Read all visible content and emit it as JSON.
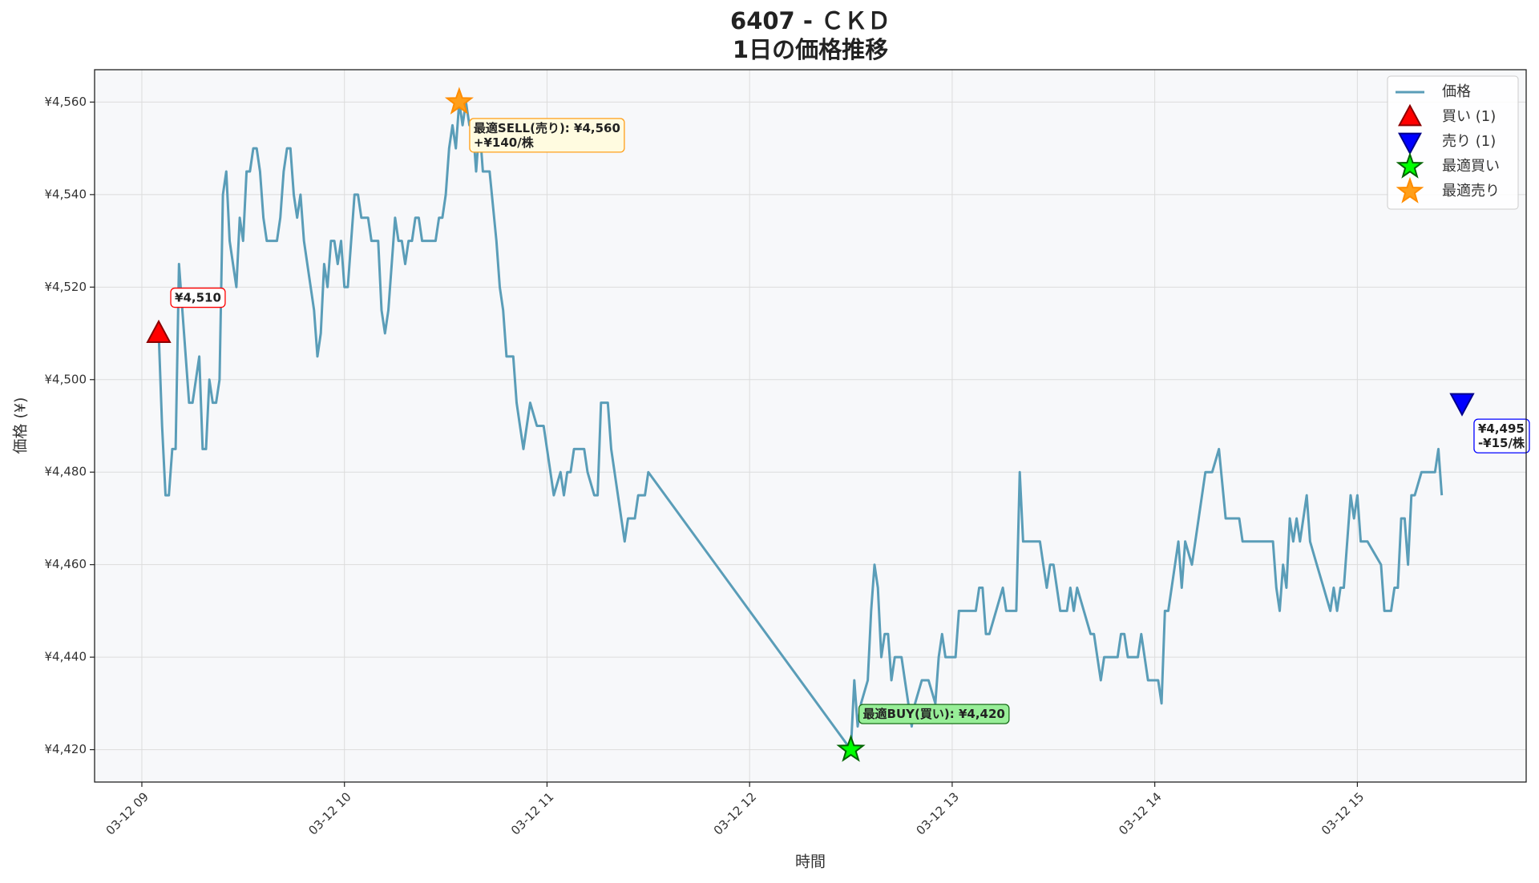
{
  "chart_data": {
    "type": "line",
    "title": "6407 - ＣＫＤ",
    "subtitle": "1日の価格推移",
    "x_label": "時間",
    "y_label": "価格 (¥)",
    "xlim": [
      "08:46",
      "15:50"
    ],
    "xticks": [
      {
        "value": "09:00",
        "label": "03-12 09"
      },
      {
        "value": "10:00",
        "label": "03-12 10"
      },
      {
        "value": "11:00",
        "label": "03-12 11"
      },
      {
        "value": "12:00",
        "label": "03-12 12"
      },
      {
        "value": "13:00",
        "label": "03-12 13"
      },
      {
        "value": "14:00",
        "label": "03-12 14"
      },
      {
        "value": "15:00",
        "label": "03-12 15"
      }
    ],
    "ylim": [
      4413,
      4567
    ],
    "yticks": [
      {
        "value": 4420,
        "label": "¥4,420"
      },
      {
        "value": 4440,
        "label": "¥4,440"
      },
      {
        "value": 4460,
        "label": "¥4,460"
      },
      {
        "value": 4480,
        "label": "¥4,480"
      },
      {
        "value": 4500,
        "label": "¥4,500"
      },
      {
        "value": 4520,
        "label": "¥4,520"
      },
      {
        "value": 4540,
        "label": "¥4,540"
      },
      {
        "value": 4560,
        "label": "¥4,560"
      }
    ],
    "grid": true,
    "legend": "upper right",
    "x": [
      "09:05",
      "09:06",
      "09:07",
      "09:08",
      "09:09",
      "09:10",
      "09:11",
      "09:12",
      "09:13",
      "09:14",
      "09:15",
      "09:16",
      "09:17",
      "09:18",
      "09:19",
      "09:20",
      "09:21",
      "09:22",
      "09:23",
      "09:24",
      "09:25",
      "09:26",
      "09:27",
      "09:28",
      "09:29",
      "09:30",
      "09:31",
      "09:32",
      "09:33",
      "09:34",
      "09:35",
      "09:36",
      "09:37",
      "09:38",
      "09:40",
      "09:41",
      "09:42",
      "09:43",
      "09:44",
      "09:45",
      "09:46",
      "09:47",
      "09:48",
      "09:49",
      "09:50",
      "09:51",
      "09:52",
      "09:53",
      "09:54",
      "09:55",
      "09:56",
      "09:57",
      "09:58",
      "09:59",
      "10:00",
      "10:01",
      "10:02",
      "10:03",
      "10:04",
      "10:05",
      "10:06",
      "10:07",
      "10:08",
      "10:09",
      "10:10",
      "10:11",
      "10:12",
      "10:13",
      "10:14",
      "10:15",
      "10:16",
      "10:17",
      "10:18",
      "10:19",
      "10:20",
      "10:21",
      "10:22",
      "10:23",
      "10:24",
      "10:27",
      "10:28",
      "10:29",
      "10:30",
      "10:31",
      "10:32",
      "10:33",
      "10:34",
      "10:35",
      "10:36",
      "10:37",
      "10:38",
      "10:39",
      "10:40",
      "10:41",
      "10:43",
      "10:45",
      "10:46",
      "10:47",
      "10:48",
      "10:50",
      "10:51",
      "10:52",
      "10:53",
      "10:54",
      "10:55",
      "10:57",
      "10:59",
      "11:01",
      "11:02",
      "11:04",
      "11:05",
      "11:06",
      "11:07",
      "11:08",
      "11:11",
      "11:12",
      "11:14",
      "11:15",
      "11:16",
      "11:18",
      "11:19",
      "11:21",
      "11:23",
      "11:24",
      "11:26",
      "11:27",
      "11:29",
      "11:30",
      "12:30",
      "12:31",
      "12:32",
      "12:33",
      "12:35",
      "12:36",
      "12:37",
      "12:38",
      "12:39",
      "12:40",
      "12:41",
      "12:42",
      "12:43",
      "12:45",
      "12:46",
      "12:47",
      "12:48",
      "12:49",
      "12:51",
      "12:53",
      "12:55",
      "12:56",
      "12:57",
      "12:58",
      "12:59",
      "13:01",
      "13:02",
      "13:07",
      "13:08",
      "13:09",
      "13:10",
      "13:11",
      "13:13",
      "13:15",
      "13:16",
      "13:19",
      "13:20",
      "13:21",
      "13:26",
      "13:27",
      "13:28",
      "13:29",
      "13:30",
      "13:31",
      "13:32",
      "13:34",
      "13:35",
      "13:36",
      "13:37",
      "13:39",
      "13:41",
      "13:42",
      "13:43",
      "13:44",
      "13:45",
      "13:49",
      "13:50",
      "13:51",
      "13:52",
      "13:55",
      "13:56",
      "13:58",
      "14:01",
      "14:02",
      "14:03",
      "14:04",
      "14:05",
      "14:07",
      "14:08",
      "14:09",
      "14:11",
      "14:13",
      "14:15",
      "14:17",
      "14:19",
      "14:21",
      "14:25",
      "14:26",
      "14:35",
      "14:36",
      "14:37",
      "14:38",
      "14:39",
      "14:40",
      "14:41",
      "14:42",
      "14:43",
      "14:44",
      "14:45",
      "14:46",
      "14:48",
      "14:50",
      "14:52",
      "14:53",
      "14:54",
      "14:55",
      "14:56",
      "14:58",
      "14:59",
      "15:00",
      "15:01",
      "15:03",
      "15:07",
      "15:08",
      "15:10",
      "15:11",
      "15:12",
      "15:13",
      "15:14",
      "15:15",
      "15:16",
      "15:17",
      "15:19",
      "15:23",
      "15:24",
      "15:25"
    ],
    "series": [
      {
        "name": "価格",
        "color": "#5a9db8",
        "values": [
          4510,
          4490,
          4475,
          4475,
          4485,
          4485,
          4525,
          4515,
          4505,
          4495,
          4495,
          4500,
          4505,
          4485,
          4485,
          4500,
          4495,
          4495,
          4500,
          4540,
          4545,
          4530,
          4525,
          4520,
          4535,
          4530,
          4545,
          4545,
          4550,
          4550,
          4545,
          4535,
          4530,
          4530,
          4530,
          4535,
          4545,
          4550,
          4550,
          4540,
          4535,
          4540,
          4530,
          4525,
          4520,
          4515,
          4505,
          4510,
          4525,
          4520,
          4530,
          4530,
          4525,
          4530,
          4520,
          4520,
          4530,
          4540,
          4540,
          4535,
          4535,
          4535,
          4530,
          4530,
          4530,
          4515,
          4510,
          4515,
          4525,
          4535,
          4530,
          4530,
          4525,
          4530,
          4530,
          4535,
          4535,
          4530,
          4530,
          4530,
          4535,
          4535,
          4540,
          4550,
          4555,
          4550,
          4560,
          4555,
          4560,
          4555,
          4555,
          4545,
          4555,
          4545,
          4545,
          4530,
          4520,
          4515,
          4505,
          4505,
          4495,
          4490,
          4485,
          4490,
          4495,
          4490,
          4490,
          4480,
          4475,
          4480,
          4475,
          4480,
          4480,
          4485,
          4485,
          4480,
          4475,
          4475,
          4495,
          4495,
          4485,
          4475,
          4465,
          4470,
          4470,
          4475,
          4475,
          4480,
          4420,
          4435,
          4425,
          4430,
          4435,
          4450,
          4460,
          4455,
          4440,
          4445,
          4445,
          4435,
          4440,
          4440,
          4435,
          4430,
          4425,
          4430,
          4435,
          4435,
          4430,
          4440,
          4445,
          4440,
          4440,
          4440,
          4450,
          4450,
          4455,
          4455,
          4445,
          4445,
          4450,
          4455,
          4450,
          4450,
          4480,
          4465,
          4465,
          4460,
          4455,
          4460,
          4460,
          4455,
          4450,
          4450,
          4455,
          4450,
          4455,
          4450,
          4445,
          4445,
          4440,
          4435,
          4440,
          4440,
          4445,
          4445,
          4440,
          4440,
          4445,
          4435,
          4435,
          4430,
          4450,
          4450,
          4455,
          4465,
          4455,
          4465,
          4460,
          4470,
          4480,
          4480,
          4485,
          4470,
          4470,
          4465,
          4465,
          4455,
          4450,
          4460,
          4455,
          4470,
          4465,
          4470,
          4465,
          4470,
          4475,
          4465,
          4460,
          4455,
          4450,
          4455,
          4450,
          4455,
          4455,
          4475,
          4470,
          4475,
          4465,
          4465,
          4460,
          4450,
          4450,
          4455,
          4455,
          4470,
          4470,
          4460,
          4475,
          4475,
          4480,
          4480,
          4485,
          4475
        ]
      }
    ],
    "markers": [
      {
        "name": "買い (1)",
        "shape": "triangle-up",
        "color": "#ff0000",
        "edgecolor": "#8b0000",
        "x": "09:05",
        "value": 4510,
        "label": [
          "¥4,510"
        ]
      },
      {
        "name": "売り (1)",
        "shape": "triangle-down",
        "color": "#0000ff",
        "edgecolor": "#00008b",
        "x": "15:31",
        "value": 4495,
        "label": [
          "¥4,495",
          "-¥15/株"
        ]
      },
      {
        "name": "最適買い",
        "shape": "star",
        "color": "#00ff00",
        "edgecolor": "#006400",
        "x": "12:30",
        "value": 4420,
        "label": [
          "最適BUY(買い): ¥4,420"
        ]
      },
      {
        "name": "最適売り",
        "shape": "star",
        "color": "#ff9f1a",
        "edgecolor": "#ff8c00",
        "x": "10:34",
        "value": 4560,
        "label": [
          "最適SELL(売り): ¥4,560",
          "+¥140/株"
        ]
      }
    ]
  }
}
